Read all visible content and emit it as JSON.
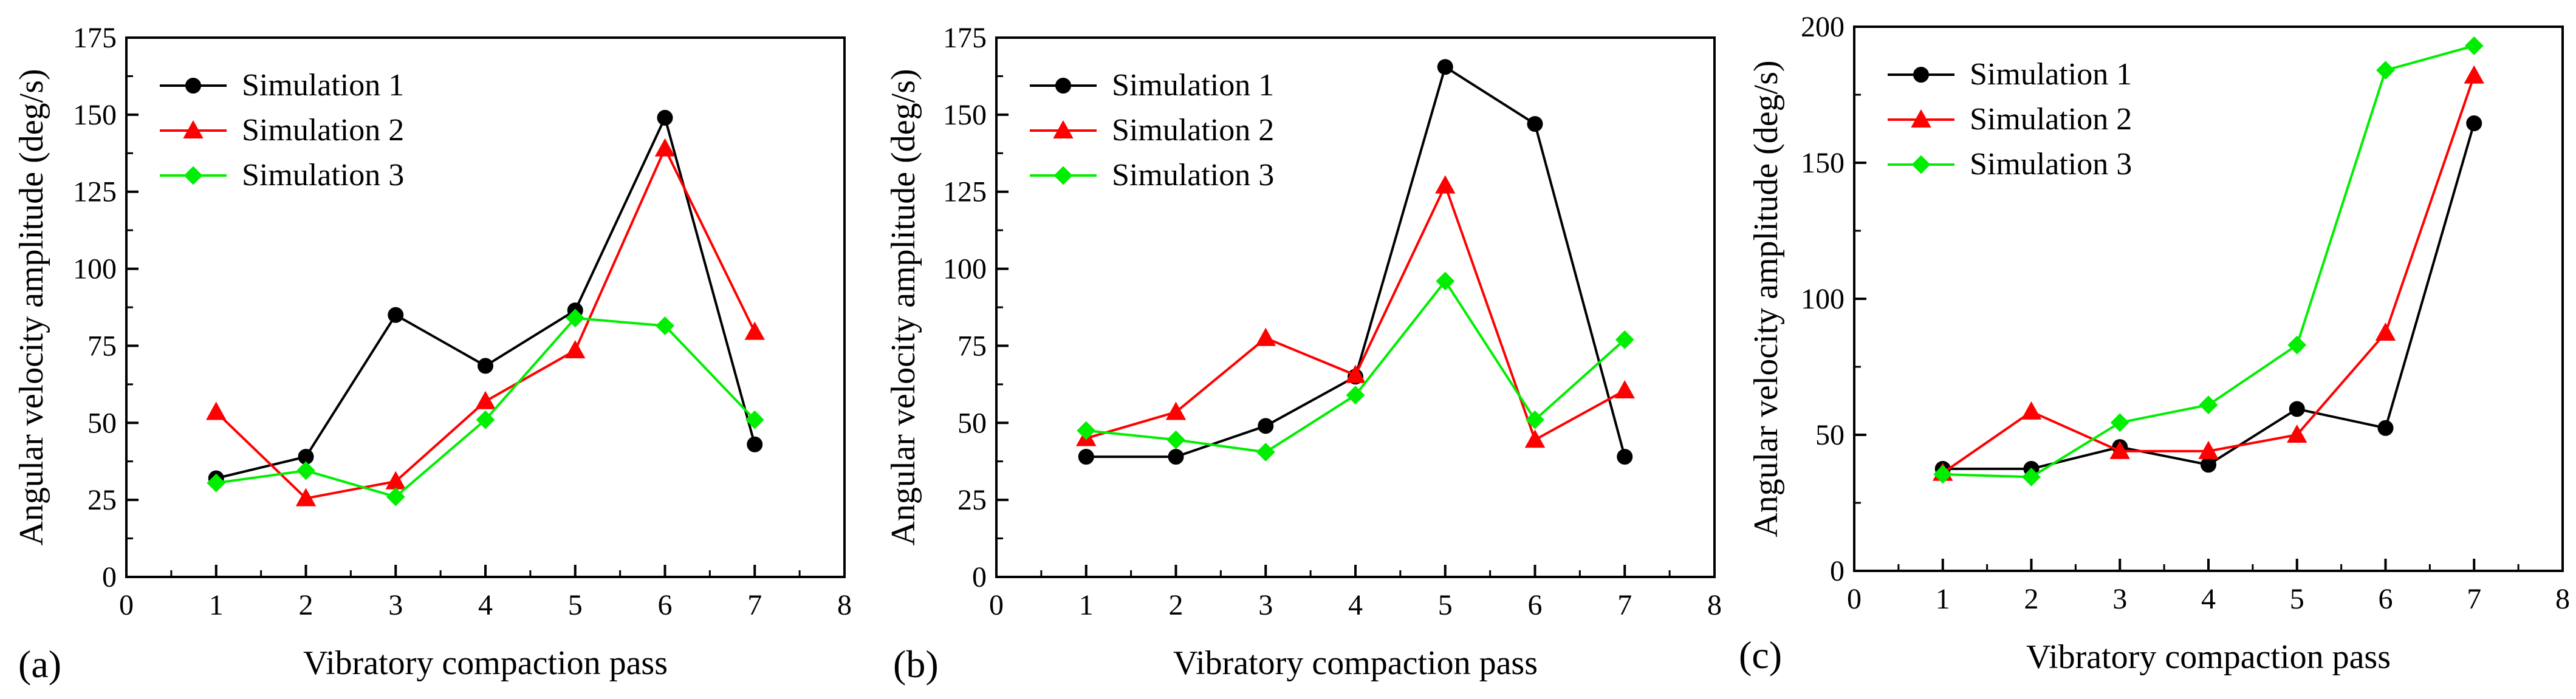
{
  "chart_data": [
    {
      "type": "line",
      "panel_label": "(a)",
      "xlabel": "Vibratory compaction pass",
      "ylabel": "Angular velocity amplitude (deg/s)",
      "xlim": [
        0,
        8
      ],
      "ylim": [
        0,
        175
      ],
      "xticks": [
        0,
        1,
        2,
        3,
        4,
        5,
        6,
        7,
        8
      ],
      "yticks": [
        0,
        25,
        50,
        75,
        100,
        125,
        150,
        175
      ],
      "grid": false,
      "legend": "top-left",
      "x": [
        1,
        2,
        3,
        4,
        5,
        6,
        7
      ],
      "series": [
        {
          "name": "Simulation 1",
          "color": "#000000",
          "marker": "circle",
          "values": [
            32,
            39,
            85,
            68.5,
            86.5,
            149,
            43
          ]
        },
        {
          "name": "Simulation 2",
          "color": "#ff0000",
          "marker": "triangle",
          "values": [
            53.5,
            25.5,
            31,
            57,
            73.5,
            139,
            79.5
          ]
        },
        {
          "name": "Simulation 3",
          "color": "#00ee00",
          "marker": "diamond",
          "values": [
            30.5,
            34.5,
            26,
            51,
            84,
            81.5,
            51
          ]
        }
      ]
    },
    {
      "type": "line",
      "panel_label": "(b)",
      "xlabel": "Vibratory compaction pass",
      "ylabel": "Angular velocity amplitude (deg/s)",
      "xlim": [
        0,
        8
      ],
      "ylim": [
        0,
        175
      ],
      "xticks": [
        0,
        1,
        2,
        3,
        4,
        5,
        6,
        7,
        8
      ],
      "yticks": [
        0,
        25,
        50,
        75,
        100,
        125,
        150,
        175
      ],
      "grid": false,
      "legend": "top-left",
      "x": [
        1,
        2,
        3,
        4,
        5,
        6,
        7
      ],
      "series": [
        {
          "name": "Simulation 1",
          "color": "#000000",
          "marker": "circle",
          "values": [
            39,
            39,
            49,
            65,
            165.5,
            147,
            39
          ]
        },
        {
          "name": "Simulation 2",
          "color": "#ff0000",
          "marker": "triangle",
          "values": [
            45,
            53.5,
            77.5,
            65.5,
            127,
            44.5,
            60.5
          ]
        },
        {
          "name": "Simulation 3",
          "color": "#00ee00",
          "marker": "diamond",
          "values": [
            47.5,
            44.5,
            40.5,
            59,
            96,
            51,
            77
          ]
        }
      ]
    },
    {
      "type": "line",
      "panel_label": "(c)",
      "xlabel": "Vibratory compaction pass",
      "ylabel": "Angular velocity amplitude (deg/s)",
      "xlim": [
        0,
        8
      ],
      "ylim": [
        0,
        200
      ],
      "xticks": [
        0,
        1,
        2,
        3,
        4,
        5,
        6,
        7,
        8
      ],
      "yticks": [
        0,
        50,
        100,
        150,
        200
      ],
      "grid": false,
      "legend": "top-left",
      "x": [
        1,
        2,
        3,
        4,
        5,
        6,
        7
      ],
      "series": [
        {
          "name": "Simulation 1",
          "color": "#000000",
          "marker": "circle",
          "values": [
            37.5,
            37.5,
            45.5,
            39,
            59.5,
            52.5,
            164.5
          ]
        },
        {
          "name": "Simulation 2",
          "color": "#ff0000",
          "marker": "triangle",
          "values": [
            36,
            58.5,
            44,
            44,
            50,
            87.5,
            182
          ]
        },
        {
          "name": "Simulation 3",
          "color": "#00ee00",
          "marker": "diamond",
          "values": [
            35.5,
            34.5,
            54.5,
            61,
            83,
            184,
            193
          ]
        }
      ]
    }
  ]
}
